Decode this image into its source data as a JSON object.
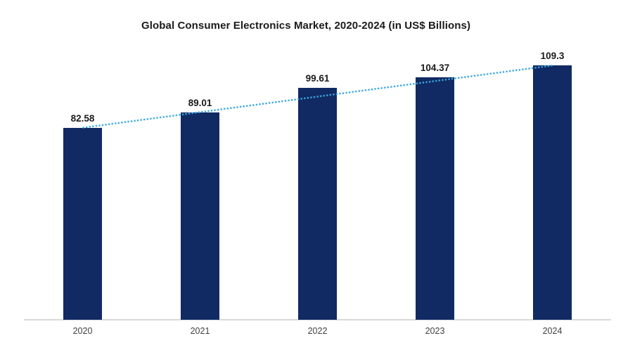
{
  "chart_data": {
    "type": "bar",
    "title": "Global Consumer Electronics Market, 2020-2024 (in US$ Billions)",
    "categories": [
      "2020",
      "2021",
      "2022",
      "2023",
      "2024"
    ],
    "values": [
      82.58,
      89.01,
      99.61,
      104.37,
      109.3
    ],
    "value_labels": [
      "82.58",
      "89.01",
      "99.61",
      "104.37",
      "109.3"
    ],
    "xlabel": "",
    "ylabel": "",
    "ylim": [
      0,
      120
    ],
    "grid": false,
    "legend": false,
    "y_axis_visible": false,
    "background_color": "#ffffff",
    "bar_color": "#112A63",
    "axis_line_color": "#D9D9D9",
    "tick_label_color": "#404040",
    "data_label_color": "#1A1A1A",
    "title_color": "#1A1A1A",
    "trendline": {
      "type": "linear",
      "style": "dotted",
      "color": "#38A9E0"
    }
  }
}
